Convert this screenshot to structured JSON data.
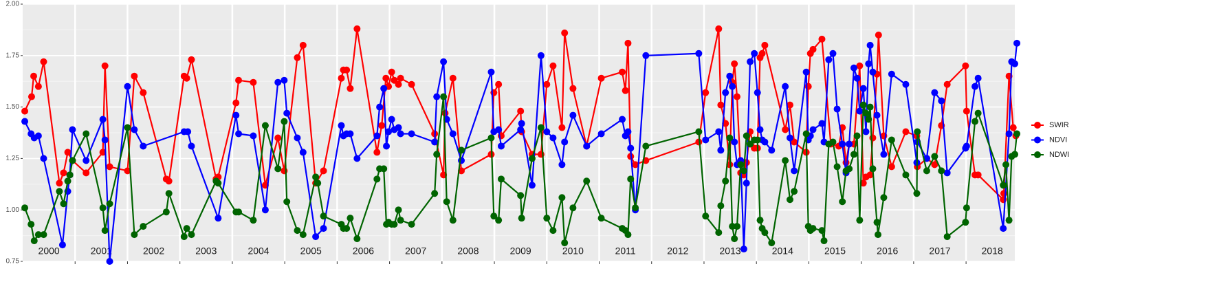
{
  "chart_data": {
    "type": "line",
    "xlim": [
      2000,
      2018.93
    ],
    "ylim": [
      0.75,
      2.0
    ],
    "yticks": [
      0.75,
      {
        "value": 1.0,
        "label": "1.00"
      },
      1.25,
      {
        "value": 1.5,
        "label": "1.50"
      },
      1.75,
      {
        "value": 2.0,
        "label": "2.00"
      }
    ],
    "xticks": [
      {
        "value": 2000.5,
        "label": "2000"
      },
      {
        "value": 2001.5,
        "label": "2001"
      },
      {
        "value": 2002.5,
        "label": "2002"
      },
      {
        "value": 2003.5,
        "label": "2003"
      },
      {
        "value": 2004.5,
        "label": "2004"
      },
      {
        "value": 2005.5,
        "label": "2005"
      },
      {
        "value": 2006.5,
        "label": "2006"
      },
      {
        "value": 2007.5,
        "label": "2007"
      },
      {
        "value": 2008.5,
        "label": "2008"
      },
      {
        "value": 2009.5,
        "label": "2009"
      },
      {
        "value": 2010.5,
        "label": "2010"
      },
      {
        "value": 2011.5,
        "label": "2011"
      },
      {
        "value": 2012.5,
        "label": "2012"
      },
      {
        "value": 2013.5,
        "label": "2013"
      },
      {
        "value": 2014.5,
        "label": "2014"
      },
      {
        "value": 2015.5,
        "label": "2015"
      },
      {
        "value": 2016.5,
        "label": "2016"
      },
      {
        "value": 2017.5,
        "label": "2017"
      },
      {
        "value": 2018.5,
        "label": "2018"
      }
    ],
    "xgrid": [
      2001,
      2002,
      2003,
      2004,
      2005,
      2006,
      2007,
      2008,
      2009,
      2010,
      2011,
      2012,
      2013,
      2014,
      2015,
      2016,
      2017,
      2018
    ],
    "grid": true,
    "legend": "right",
    "series": [
      {
        "name": "SWIR",
        "color": "#ff0000",
        "x": [
          2000.04,
          2000.17,
          2000.21,
          2000.3,
          2000.4,
          2000.7,
          2000.78,
          2000.86,
          2000.95,
          2001.21,
          2001.53,
          2001.57,
          2001.66,
          2002.0,
          2002.13,
          2002.3,
          2002.74,
          2002.79,
          2003.08,
          2003.13,
          2003.22,
          2003.69,
          2003.73,
          2004.07,
          2004.12,
          2004.4,
          2004.63,
          2004.87,
          2004.99,
          2005.24,
          2005.35,
          2005.59,
          2005.74,
          2006.08,
          2006.12,
          2006.18,
          2006.25,
          2006.38,
          2006.76,
          2006.85,
          2006.93,
          2006.98,
          2007.04,
          2007.09,
          2007.17,
          2007.21,
          2007.42,
          2007.86,
          2008.03,
          2008.06,
          2008.21,
          2008.37,
          2008.94,
          2008.99,
          2009.08,
          2009.13,
          2009.5,
          2009.52,
          2009.72,
          2009.89,
          2010.0,
          2010.12,
          2010.29,
          2010.34,
          2010.5,
          2010.76,
          2011.04,
          2011.44,
          2011.5,
          2011.55,
          2011.6,
          2011.69,
          2011.89,
          2012.9,
          2013.03,
          2013.28,
          2013.32,
          2013.41,
          2013.49,
          2013.54,
          2013.58,
          2013.63,
          2013.7,
          2013.76,
          2013.81,
          2013.88,
          2013.96,
          2014.02,
          2014.07,
          2014.11,
          2014.16,
          2014.55,
          2014.64,
          2014.72,
          2014.95,
          2014.99,
          2015.03,
          2015.08,
          2015.25,
          2015.42,
          2015.57,
          2015.64,
          2015.71,
          2015.77,
          2015.86,
          2015.97,
          2016.04,
          2016.09,
          2016.17,
          2016.22,
          2016.3,
          2016.33,
          2016.43,
          2016.58,
          2016.85,
          2017.06,
          2017.07,
          2017.25,
          2017.4,
          2017.53,
          2017.64,
          2017.99,
          2018.01,
          2018.17,
          2018.23,
          2018.71,
          2018.72,
          2018.82,
          2018.9,
          2018.95
        ],
        "values": [
          1.48,
          1.55,
          1.65,
          1.6,
          1.72,
          1.13,
          1.18,
          1.28,
          1.24,
          1.18,
          1.28,
          1.7,
          1.21,
          1.19,
          1.65,
          1.57,
          1.15,
          1.14,
          1.65,
          1.64,
          1.73,
          1.15,
          1.16,
          1.52,
          1.63,
          1.62,
          1.12,
          1.35,
          1.19,
          1.74,
          1.8,
          1.13,
          1.19,
          1.64,
          1.68,
          1.68,
          1.59,
          1.88,
          1.28,
          1.41,
          1.64,
          1.6,
          1.67,
          1.63,
          1.61,
          1.64,
          1.61,
          1.37,
          1.17,
          1.47,
          1.64,
          1.19,
          1.27,
          1.57,
          1.61,
          1.36,
          1.48,
          1.38,
          1.27,
          1.27,
          1.61,
          1.7,
          1.4,
          1.86,
          1.59,
          1.31,
          1.64,
          1.67,
          1.58,
          1.81,
          1.26,
          1.22,
          1.24,
          1.33,
          1.57,
          1.88,
          1.51,
          1.42,
          1.22,
          1.62,
          1.71,
          1.55,
          1.18,
          1.17,
          1.23,
          1.38,
          1.3,
          1.3,
          1.74,
          1.76,
          1.8,
          1.39,
          1.51,
          1.33,
          1.28,
          1.6,
          1.76,
          1.78,
          1.83,
          1.32,
          1.31,
          1.4,
          1.23,
          1.32,
          1.32,
          1.7,
          1.13,
          1.16,
          1.17,
          1.35,
          1.66,
          1.85,
          1.36,
          1.21,
          1.38,
          1.36,
          1.21,
          1.25,
          1.22,
          1.41,
          1.61,
          1.7,
          1.48,
          1.17,
          1.17,
          1.05,
          1.08,
          1.65,
          1.4,
          1.36
        ]
      },
      {
        "name": "NDVI",
        "color": "#0000ff",
        "x": [
          2000.04,
          2000.16,
          2000.22,
          2000.3,
          2000.4,
          2000.76,
          2000.86,
          2000.9,
          2000.95,
          2001.21,
          2001.53,
          2001.57,
          2001.66,
          2002.0,
          2002.13,
          2002.3,
          2003.08,
          2003.15,
          2003.22,
          2003.73,
          2004.07,
          2004.12,
          2004.4,
          2004.63,
          2004.87,
          2004.99,
          2005.04,
          2005.24,
          2005.35,
          2005.59,
          2005.74,
          2006.08,
          2006.12,
          2006.18,
          2006.25,
          2006.38,
          2006.76,
          2006.81,
          2006.89,
          2006.94,
          2006.98,
          2007.04,
          2007.09,
          2007.17,
          2007.21,
          2007.42,
          2007.86,
          2007.9,
          2008.03,
          2008.09,
          2008.21,
          2008.37,
          2008.94,
          2008.99,
          2009.08,
          2009.13,
          2009.5,
          2009.52,
          2009.72,
          2009.89,
          2010.0,
          2010.12,
          2010.29,
          2010.34,
          2010.5,
          2010.76,
          2011.04,
          2011.44,
          2011.5,
          2011.55,
          2011.6,
          2011.69,
          2011.89,
          2012.9,
          2013.03,
          2013.28,
          2013.32,
          2013.41,
          2013.49,
          2013.54,
          2013.58,
          2013.63,
          2013.7,
          2013.76,
          2013.81,
          2013.88,
          2013.96,
          2014.02,
          2014.07,
          2014.11,
          2014.16,
          2014.29,
          2014.55,
          2014.64,
          2014.72,
          2014.95,
          2014.99,
          2015.03,
          2015.08,
          2015.25,
          2015.29,
          2015.38,
          2015.46,
          2015.54,
          2015.64,
          2015.71,
          2015.77,
          2015.86,
          2015.92,
          2015.97,
          2016.04,
          2016.09,
          2016.14,
          2016.17,
          2016.22,
          2016.3,
          2016.43,
          2016.58,
          2016.85,
          2017.06,
          2017.07,
          2017.25,
          2017.4,
          2017.53,
          2017.64,
          2017.99,
          2018.01,
          2018.17,
          2018.23,
          2018.71,
          2018.82,
          2018.87,
          2018.93,
          2018.97
        ],
        "values": [
          1.43,
          1.37,
          1.35,
          1.36,
          1.25,
          0.83,
          1.09,
          1.17,
          1.39,
          1.24,
          1.44,
          1.34,
          0.75,
          1.6,
          1.39,
          1.31,
          1.38,
          1.38,
          1.31,
          0.96,
          1.46,
          1.37,
          1.36,
          1.0,
          1.62,
          1.63,
          1.47,
          1.35,
          1.28,
          0.87,
          0.91,
          1.41,
          1.36,
          1.37,
          1.37,
          1.25,
          1.36,
          1.5,
          1.59,
          1.31,
          1.38,
          1.44,
          1.39,
          1.4,
          1.37,
          1.37,
          1.33,
          1.55,
          1.72,
          1.44,
          1.37,
          1.24,
          1.67,
          1.38,
          1.39,
          1.31,
          1.39,
          1.42,
          1.12,
          1.75,
          1.38,
          1.35,
          1.22,
          1.33,
          1.46,
          1.31,
          1.37,
          1.44,
          1.36,
          1.38,
          1.3,
          1.0,
          1.75,
          1.76,
          1.34,
          1.38,
          1.29,
          1.57,
          1.65,
          1.6,
          1.33,
          1.22,
          1.24,
          0.81,
          1.13,
          1.72,
          1.76,
          1.57,
          1.39,
          1.34,
          1.33,
          1.29,
          1.6,
          1.35,
          1.19,
          1.67,
          1.34,
          1.36,
          1.39,
          1.42,
          1.33,
          1.73,
          1.76,
          1.49,
          1.32,
          1.18,
          1.32,
          1.69,
          1.64,
          1.48,
          1.59,
          1.38,
          1.71,
          1.8,
          1.67,
          1.46,
          1.27,
          1.66,
          1.61,
          1.23,
          1.33,
          1.25,
          1.57,
          1.53,
          1.18,
          1.3,
          1.31,
          1.6,
          1.64,
          0.91,
          1.37,
          1.72,
          1.71,
          1.81
        ]
      },
      {
        "name": "NDWI",
        "color": "#006400",
        "x": [
          2000.04,
          2000.16,
          2000.22,
          2000.3,
          2000.4,
          2000.7,
          2000.78,
          2000.86,
          2000.9,
          2000.95,
          2001.21,
          2001.53,
          2001.57,
          2001.66,
          2002.0,
          2002.13,
          2002.3,
          2002.74,
          2002.79,
          2003.08,
          2003.13,
          2003.22,
          2003.69,
          2003.73,
          2004.07,
          2004.12,
          2004.4,
          2004.63,
          2004.87,
          2004.99,
          2005.04,
          2005.24,
          2005.35,
          2005.59,
          2005.63,
          2005.74,
          2006.08,
          2006.12,
          2006.18,
          2006.25,
          2006.38,
          2006.76,
          2006.81,
          2006.89,
          2006.94,
          2006.98,
          2007.04,
          2007.09,
          2007.17,
          2007.21,
          2007.42,
          2007.86,
          2007.9,
          2008.03,
          2008.09,
          2008.21,
          2008.37,
          2008.94,
          2008.99,
          2009.08,
          2009.13,
          2009.5,
          2009.52,
          2009.72,
          2009.89,
          2010.0,
          2010.12,
          2010.29,
          2010.34,
          2010.5,
          2010.76,
          2011.04,
          2011.44,
          2011.5,
          2011.55,
          2011.6,
          2011.69,
          2011.89,
          2012.9,
          2013.03,
          2013.28,
          2013.32,
          2013.41,
          2013.49,
          2013.54,
          2013.58,
          2013.63,
          2013.7,
          2013.76,
          2013.81,
          2013.88,
          2013.96,
          2014.02,
          2014.07,
          2014.11,
          2014.16,
          2014.29,
          2014.55,
          2014.64,
          2014.72,
          2014.95,
          2014.99,
          2015.03,
          2015.08,
          2015.25,
          2015.29,
          2015.38,
          2015.46,
          2015.54,
          2015.64,
          2015.71,
          2015.77,
          2015.86,
          2015.92,
          2015.97,
          2016.04,
          2016.09,
          2016.14,
          2016.17,
          2016.22,
          2016.3,
          2016.32,
          2016.43,
          2016.58,
          2016.85,
          2017.06,
          2017.07,
          2017.25,
          2017.4,
          2017.53,
          2017.64,
          2017.99,
          2018.01,
          2018.17,
          2018.23,
          2018.71,
          2018.76,
          2018.82,
          2018.87,
          2018.93,
          2018.97
        ],
        "values": [
          1.01,
          0.93,
          0.85,
          0.88,
          0.88,
          1.09,
          1.03,
          1.14,
          1.17,
          1.24,
          1.37,
          1.01,
          0.9,
          1.03,
          1.4,
          0.88,
          0.92,
          0.99,
          1.08,
          0.87,
          0.91,
          0.88,
          1.14,
          1.13,
          0.99,
          0.99,
          0.95,
          1.41,
          1.2,
          1.43,
          1.04,
          0.9,
          0.88,
          1.16,
          1.13,
          0.97,
          0.93,
          0.91,
          0.91,
          0.96,
          0.86,
          1.15,
          1.2,
          1.2,
          0.93,
          0.94,
          0.93,
          0.93,
          1.0,
          0.95,
          0.93,
          1.08,
          1.27,
          1.55,
          1.04,
          0.95,
          1.29,
          1.35,
          0.97,
          0.95,
          1.15,
          1.07,
          0.96,
          1.25,
          1.4,
          0.96,
          0.9,
          1.06,
          0.84,
          1.01,
          1.14,
          0.96,
          0.91,
          0.9,
          0.88,
          1.15,
          1.01,
          1.31,
          1.38,
          0.97,
          0.89,
          1.02,
          1.14,
          1.35,
          0.92,
          0.86,
          0.92,
          1.22,
          1.19,
          1.36,
          1.32,
          1.34,
          1.34,
          0.95,
          0.91,
          0.89,
          0.84,
          1.24,
          1.05,
          1.09,
          1.37,
          0.92,
          0.9,
          0.91,
          0.9,
          0.85,
          1.32,
          1.33,
          1.21,
          1.04,
          1.19,
          1.2,
          1.27,
          1.36,
          0.95,
          1.51,
          1.47,
          1.44,
          1.5,
          1.2,
          0.94,
          0.88,
          1.06,
          1.34,
          1.17,
          1.08,
          1.38,
          1.19,
          1.26,
          1.19,
          0.87,
          0.94,
          1.01,
          1.43,
          1.47,
          1.12,
          1.22,
          0.95,
          1.26,
          1.27,
          1.37
        ]
      }
    ]
  }
}
